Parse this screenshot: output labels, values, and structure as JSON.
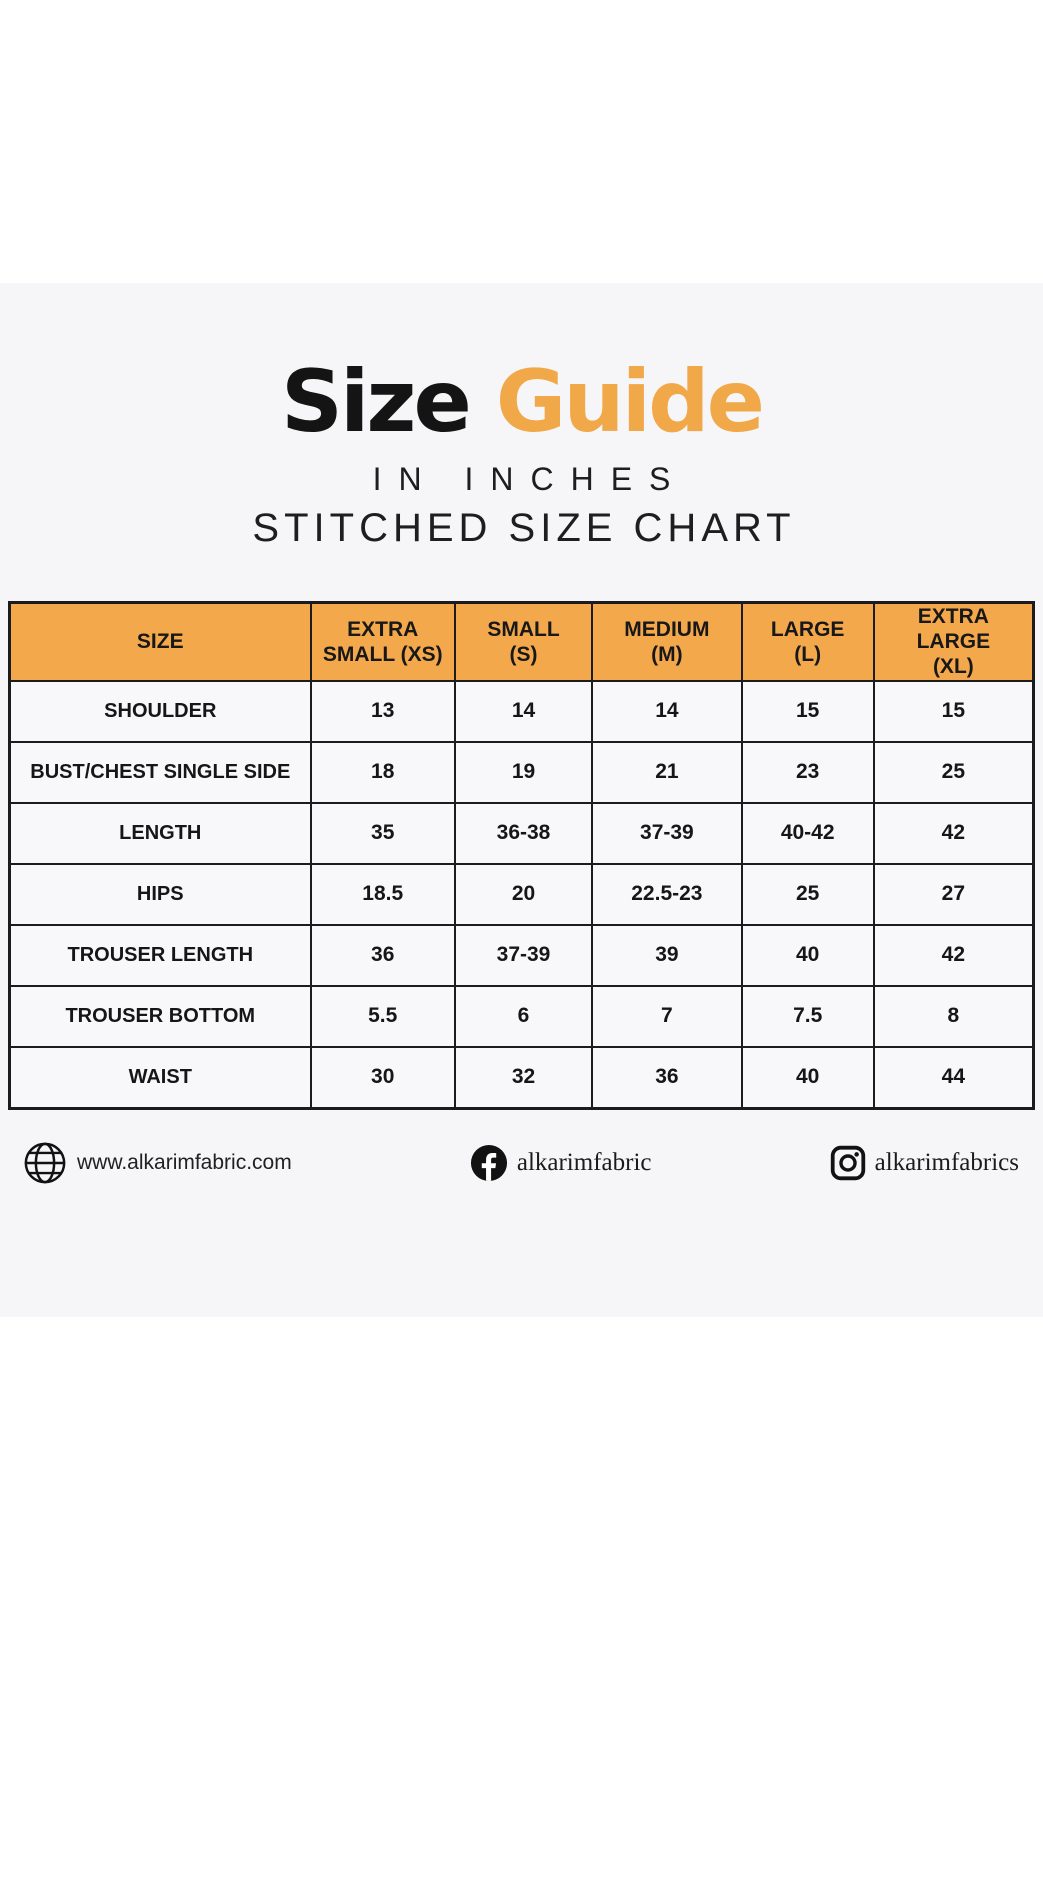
{
  "page": {
    "title_word_black": "Size",
    "title_word_orange": "Guide",
    "subtitle_line1": "IN INCHES",
    "subtitle_line2": "STITCHED SIZE CHART"
  },
  "colors": {
    "title_orange": "#F0A848",
    "header_orange": "#F4A84C",
    "band_gray": "#F6F6F8",
    "border_dark": "#1C1C1E"
  },
  "chart_data": {
    "type": "table",
    "title": "Size Guide",
    "units": "inches",
    "columns": [
      "SIZE",
      "EXTRA SMALL (XS)",
      "SMALL (S)",
      "MEDIUM (M)",
      "LARGE (L)",
      "EXTRA LARGE (XL)"
    ],
    "column_lines": [
      [
        "SIZE"
      ],
      [
        "EXTRA",
        "SMALL (XS)"
      ],
      [
        "SMALL",
        "(S)"
      ],
      [
        "MEDIUM",
        "(M)"
      ],
      [
        "LARGE",
        "(L)"
      ],
      [
        "EXTRA LARGE",
        "(XL)"
      ]
    ],
    "rows": [
      {
        "label": "SHOULDER",
        "values": [
          "13",
          "14",
          "14",
          "15",
          "15"
        ]
      },
      {
        "label": "BUST/CHEST SINGLE SIDE",
        "values": [
          "18",
          "19",
          "21",
          "23",
          "25"
        ]
      },
      {
        "label": "LENGTH",
        "values": [
          "35",
          "36-38",
          "37-39",
          "40-42",
          "42"
        ]
      },
      {
        "label": "HIPS",
        "values": [
          "18.5",
          "20",
          "22.5-23",
          "25",
          "27"
        ]
      },
      {
        "label": "TROUSER LENGTH",
        "values": [
          "36",
          "37-39",
          "39",
          "40",
          "42"
        ]
      },
      {
        "label": "TROUSER BOTTOM",
        "values": [
          "5.5",
          "6",
          "7",
          "7.5",
          "8"
        ]
      },
      {
        "label": "WAIST",
        "values": [
          "30",
          "32",
          "36",
          "40",
          "44"
        ]
      }
    ]
  },
  "footer": {
    "website_label": "www.alkarimfabric.com",
    "facebook_label": "alkarimfabric",
    "instagram_label": "alkarimfabrics"
  }
}
